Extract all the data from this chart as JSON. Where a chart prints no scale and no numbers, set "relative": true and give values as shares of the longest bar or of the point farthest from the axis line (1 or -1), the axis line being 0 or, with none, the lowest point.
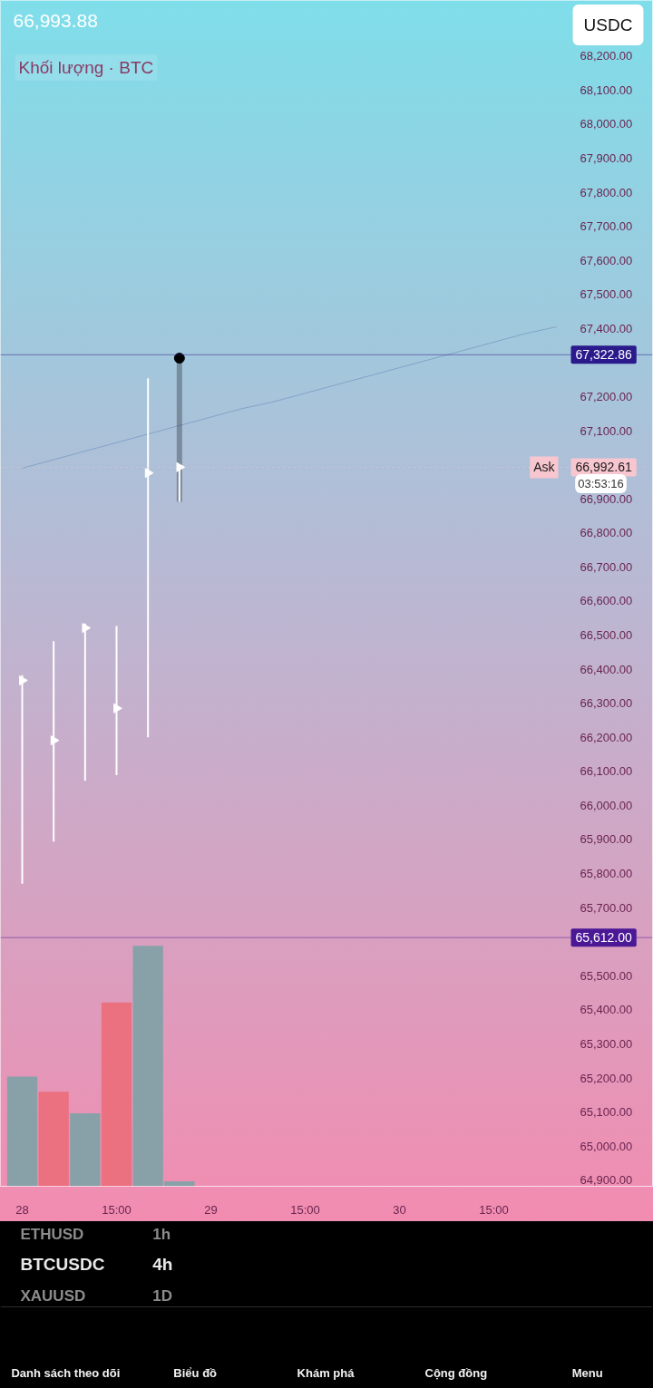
{
  "chart_data": [
    {
      "type": "scatter",
      "title": "66,993.88",
      "categories": [
        "28",
        null,
        null,
        "15:00",
        null,
        null,
        "29",
        null,
        null,
        "15:00",
        null,
        null,
        "30",
        null,
        null,
        "15:00",
        null,
        null
      ],
      "series": [
        {
          "type": "line",
          "color": "#7d9cc4",
          "values": [
            66990,
            67015,
            67040,
            67065,
            67090,
            67115,
            67140,
            67165,
            67185,
            67210,
            67235,
            67260,
            67285,
            67310,
            67335,
            67360,
            67385,
            67405
          ]
        },
        {
          "type": "scatter",
          "color": "#000000",
          "marker": "circle",
          "values": [
            null,
            null,
            null,
            null,
            null,
            67313,
            null,
            null,
            null,
            null,
            null,
            null,
            null,
            null,
            null,
            null,
            null,
            null
          ],
          "errors": [
            null,
            null,
            null,
            null,
            null,
            [
              66891,
              67313
            ],
            null,
            null,
            null,
            null,
            null,
            null,
            null,
            null,
            null,
            null,
            null,
            null
          ]
        },
        {
          "type": "scatter",
          "color": "#ffffff",
          "marker": "triangle",
          "values": [
            66367,
            66191,
            66521,
            66285,
            66976,
            66993,
            null,
            null,
            null,
            null,
            null,
            null,
            null,
            null,
            null,
            null,
            null,
            null
          ],
          "errors": [
            [
              65770,
              66382
            ],
            [
              65894,
              66482
            ],
            [
              66072,
              66534
            ],
            [
              66089,
              66527
            ],
            [
              66200,
              67254
            ],
            [
              66891,
              66993
            ],
            null,
            null,
            null,
            null,
            null,
            null,
            null,
            null,
            null,
            null,
            null,
            null
          ]
        }
      ],
      "ylim": [
        64882,
        68363
      ],
      "yticks": [
        {
          "value": 64900,
          "label": "64,900.00"
        },
        {
          "value": 65000,
          "label": "65,000.00"
        },
        {
          "value": 65100,
          "label": "65,100.00"
        },
        {
          "value": 65200,
          "label": "65,200.00"
        },
        {
          "value": 65300,
          "label": "65,300.00"
        },
        {
          "value": 65400,
          "label": "65,400.00"
        },
        {
          "value": 65500,
          "label": "65,500.00"
        },
        {
          "value": 65700,
          "label": "65,700.00"
        },
        {
          "value": 65800,
          "label": "65,800.00"
        },
        {
          "value": 65900,
          "label": "65,900.00"
        },
        {
          "value": 66000,
          "label": "66,000.00"
        },
        {
          "value": 66100,
          "label": "66,100.00"
        },
        {
          "value": 66200,
          "label": "66,200.00"
        },
        {
          "value": 66300,
          "label": "66,300.00"
        },
        {
          "value": 66400,
          "label": "66,400.00"
        },
        {
          "value": 66500,
          "label": "66,500.00"
        },
        {
          "value": 66600,
          "label": "66,600.00"
        },
        {
          "value": 66700,
          "label": "66,700.00"
        },
        {
          "value": 66800,
          "label": "66,800.00"
        },
        {
          "value": 66900,
          "label": "66,900.00"
        },
        {
          "value": 67100,
          "label": "67,100.00"
        },
        {
          "value": 67200,
          "label": "67,200.00"
        },
        {
          "value": 67400,
          "label": "67,400.00"
        },
        {
          "value": 67500,
          "label": "67,500.00"
        },
        {
          "value": 67600,
          "label": "67,600.00"
        },
        {
          "value": 67700,
          "label": "67,700.00"
        },
        {
          "value": 67800,
          "label": "67,800.00"
        },
        {
          "value": 67900,
          "label": "67,900.00"
        },
        {
          "value": 68000,
          "label": "68,000.00"
        },
        {
          "value": 68100,
          "label": "68,100.00"
        },
        {
          "value": 68200,
          "label": "68,200.00"
        }
      ],
      "ref_lines": [
        {
          "axis": "y",
          "value": 67322.86,
          "label": "67,322.86",
          "color": "#2b1a8c",
          "line_style": "solid"
        },
        {
          "axis": "y",
          "value": 66992.61,
          "label": "66,992.61",
          "color": "#f7c6cf",
          "line_style": "dotted"
        },
        {
          "axis": "y",
          "value": 65612.0,
          "label": "65,612.00",
          "color": "#4b1896",
          "line_style": "solid"
        }
      ],
      "annotations": [
        {
          "text": "Ask",
          "y": 66992.61
        },
        "USDC",
        "03:53:16",
        "ETHUSD",
        "1h",
        "BTCUSDC",
        "4h",
        "XAUUSD",
        "1D",
        "Danh sách theo dõi",
        "Biểu đồ",
        "Khám phá",
        "Cộng đồng",
        "Menu"
      ]
    },
    {
      "type": "bar",
      "title": "Khối lượng · BTC",
      "relative": true,
      "categories": [
        null,
        null,
        null,
        null,
        null,
        null,
        null,
        null,
        null,
        null,
        null,
        null,
        null,
        null,
        null,
        null,
        null,
        null
      ],
      "values": [
        0.456,
        0.393,
        0.303,
        0.764,
        1,
        0.021,
        null,
        null,
        null,
        null,
        null,
        null,
        null,
        null,
        null,
        null,
        null,
        null
      ],
      "colors": [
        "#88a0a8",
        "#eb7080",
        "#88a0a8",
        "#eb7080",
        "#88a0a8",
        "#88a0a8",
        null,
        null,
        null,
        null,
        null,
        null,
        null,
        null,
        null,
        null,
        null,
        null
      ],
      "tick_labels": false
    }
  ]
}
